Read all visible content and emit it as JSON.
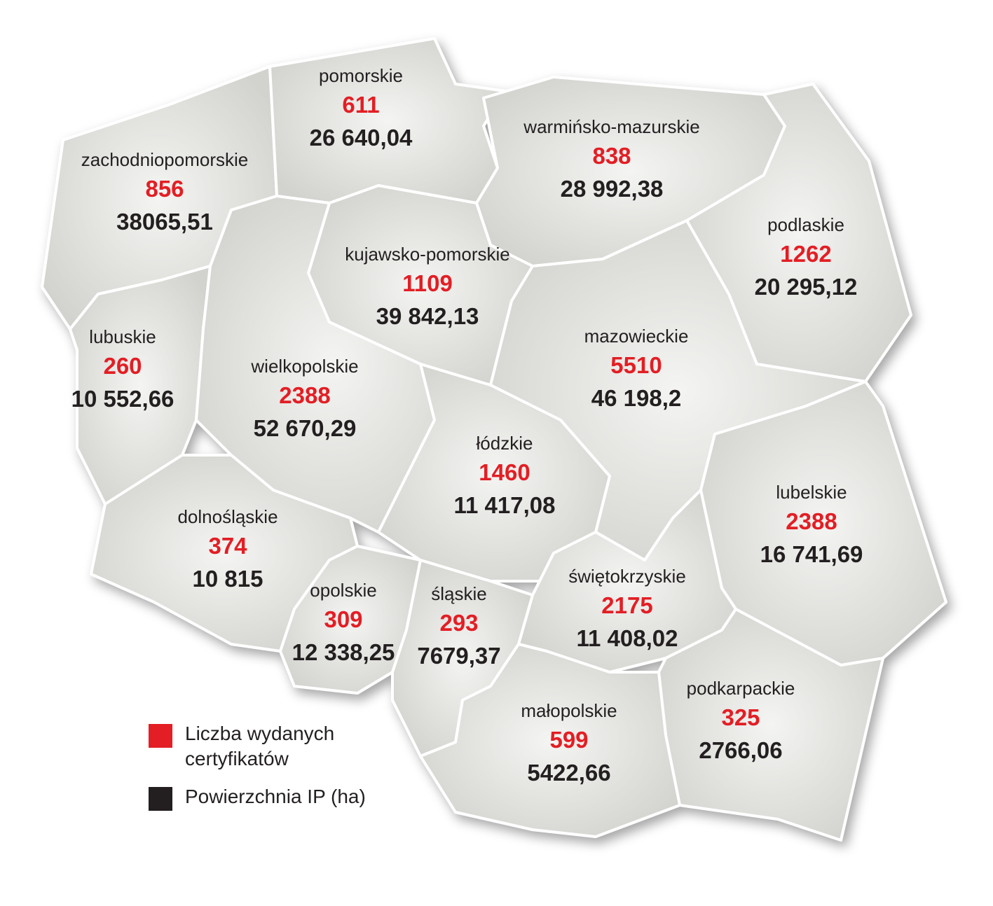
{
  "regions": [
    {
      "name": "zachodniopomorskie",
      "certificates": 856,
      "area": "38065,51"
    },
    {
      "name": "pomorskie",
      "certificates": 611,
      "area": "26 640,04"
    },
    {
      "name": "warmińsko-mazurskie",
      "certificates": 838,
      "area": "28 992,38"
    },
    {
      "name": "podlaskie",
      "certificates": 1262,
      "area": "20 295,12"
    },
    {
      "name": "kujawsko-pomorskie",
      "certificates": 1109,
      "area": "39 842,13"
    },
    {
      "name": "lubuskie",
      "certificates": 260,
      "area": "10 552,66"
    },
    {
      "name": "wielkopolskie",
      "certificates": 2388,
      "area": "52 670,29"
    },
    {
      "name": "mazowieckie",
      "certificates": 5510,
      "area": "46 198,2"
    },
    {
      "name": "łódzkie",
      "certificates": 1460,
      "area": "11 417,08"
    },
    {
      "name": "lubelskie",
      "certificates": 2388,
      "area": "16 741,69"
    },
    {
      "name": "dolnośląskie",
      "certificates": 374,
      "area": "10 815"
    },
    {
      "name": "opolskie",
      "certificates": 309,
      "area": "12 338,25"
    },
    {
      "name": "śląskie",
      "certificates": 293,
      "area": "7679,37"
    },
    {
      "name": "świętokrzyskie",
      "certificates": 2175,
      "area": "11 408,02"
    },
    {
      "name": "podkarpackie",
      "certificates": 325,
      "area": "2766,06"
    },
    {
      "name": "małopolskie",
      "certificates": 599,
      "area": "5422,66"
    }
  ],
  "legend": [
    {
      "label": "Liczba wydanych certyfikatów",
      "color": "#e31e24"
    },
    {
      "label": "Powierzchnia IP (ha)",
      "color": "#231f20"
    }
  ]
}
